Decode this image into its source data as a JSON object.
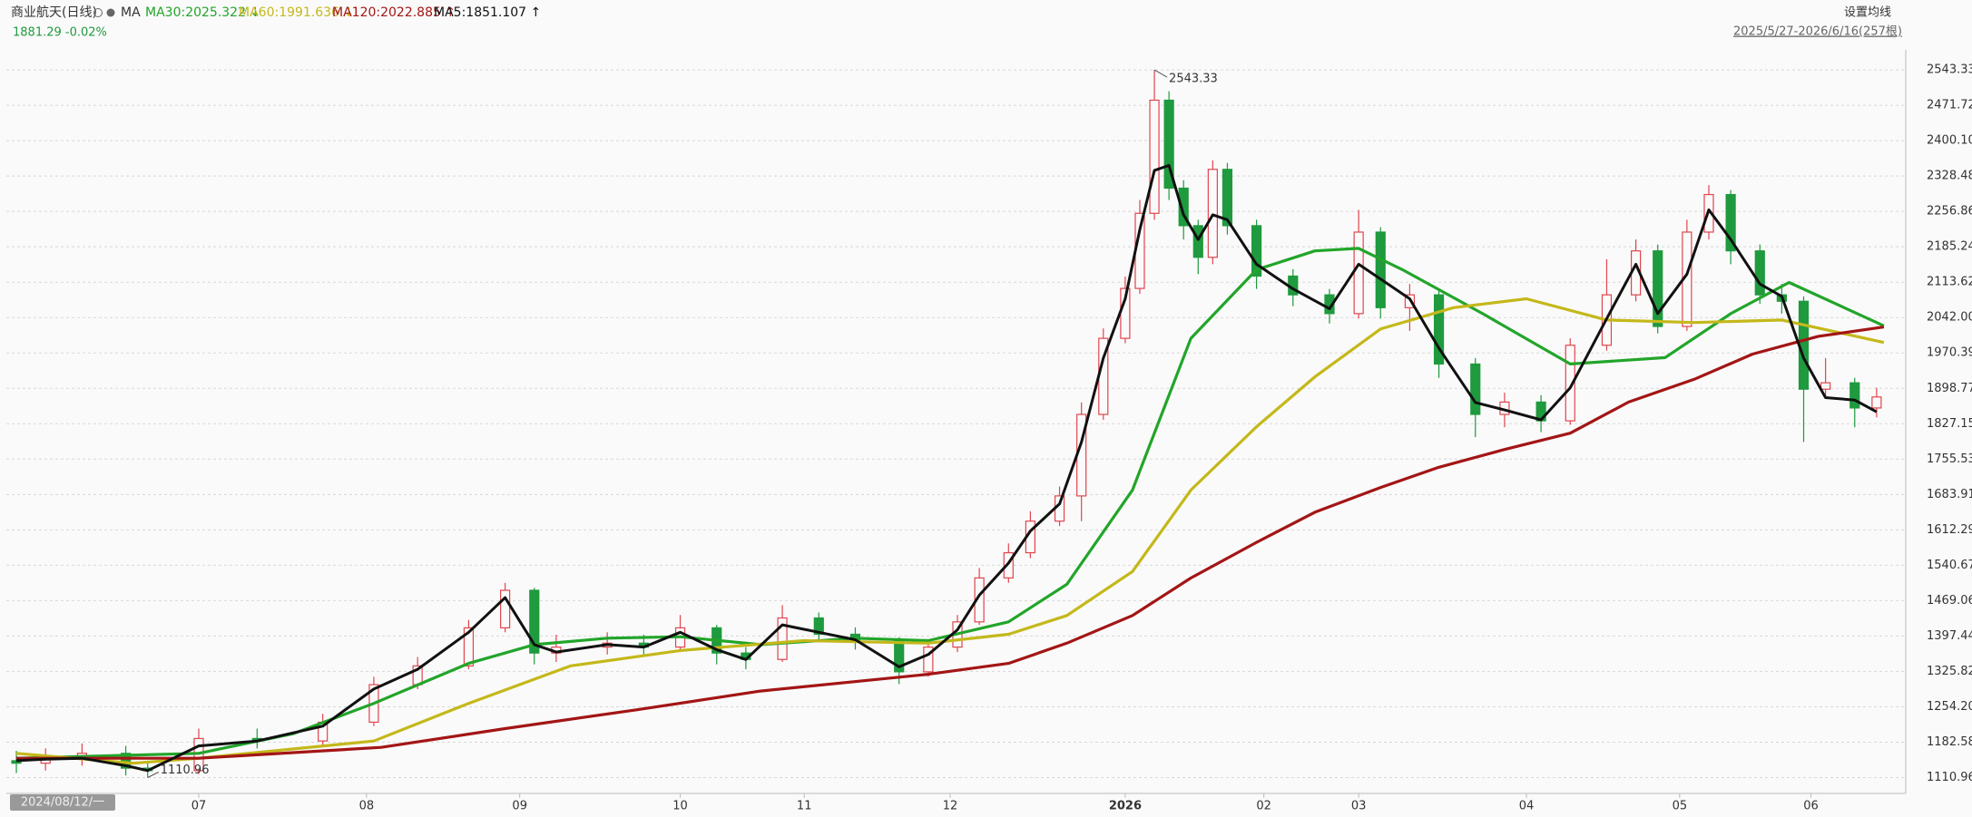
{
  "chart_data": {
    "type": "candlestick",
    "title": "商业航天(日线)",
    "indicator": "MA",
    "subtitle": "1881.29 -0.02%",
    "settings_button": "设置均线",
    "range_label": "2025/5/27-2026/6/16(257根)",
    "cursor_date_label": "2024/08/12/一",
    "annotations": [
      "2543.33",
      "1110.96"
    ],
    "up_color": "#e0454d",
    "down_color": "#1f9a3e",
    "grid": true,
    "xlim": [
      -1,
      258
    ],
    "ylim": [
      1088,
      2571
    ],
    "xticks": [
      {
        "value": 25,
        "label": "07"
      },
      {
        "value": 48,
        "label": "08"
      },
      {
        "value": 69,
        "label": "09"
      },
      {
        "value": 91,
        "label": "10"
      },
      {
        "value": 108,
        "label": "11"
      },
      {
        "value": 128,
        "label": "12"
      },
      {
        "value": 152,
        "label": "2026"
      },
      {
        "value": 171,
        "label": "02"
      },
      {
        "value": 184,
        "label": "03"
      },
      {
        "value": 207,
        "label": "04"
      },
      {
        "value": 228,
        "label": "05"
      },
      {
        "value": 246,
        "label": "06"
      }
    ],
    "yticks": [
      1110.96,
      1182.58,
      {
        "value": 1254.2,
        "label": "1254.20"
      },
      1325.82,
      1397.44,
      1469.06,
      1540.67,
      1612.29,
      1683.91,
      1755.53,
      1827.15,
      1898.77,
      1970.39,
      {
        "value": 2042,
        "label": "2042.00"
      },
      2113.62,
      2185.24,
      2256.86,
      2328.48,
      {
        "value": 2400.1,
        "label": "2400.10"
      },
      2471.72,
      2543.33
    ],
    "x": [
      0,
      4,
      9,
      15,
      18,
      25,
      33,
      42,
      49,
      55,
      62,
      67,
      71,
      74,
      81,
      86,
      91,
      96,
      100,
      105,
      110,
      115,
      121,
      125,
      129,
      132,
      136,
      139,
      143,
      146,
      149,
      152,
      154,
      156,
      158,
      160,
      162,
      164,
      166,
      170,
      175,
      180,
      184,
      187,
      191,
      195,
      200,
      204,
      209,
      213,
      218,
      222,
      225,
      229,
      232,
      235,
      239,
      242,
      245,
      248,
      252,
      255
    ],
    "open": [
      1145,
      1140,
      1150,
      1160,
      1130,
      1125,
      1190,
      1185,
      1223,
      1299,
      1337,
      1414,
      1490,
      1363,
      1375,
      1383,
      1375,
      1414,
      1363,
      1350,
      1434,
      1401,
      1388,
      1325,
      1375,
      1426,
      1515,
      1566,
      1630,
      1681,
      1846,
      2000,
      2101,
      2253,
      2482,
      2304,
      2228,
      2164,
      2342,
      2228,
      2126,
      2088,
      2050,
      2215,
      2062,
      2088,
      1948,
      1846,
      1871,
      1833,
      1986,
      2088,
      2177,
      2024,
      2215,
      2291,
      2177,
      2088,
      2075,
      1897,
      1910,
      1859
    ],
    "high": [
      1165,
      1170,
      1180,
      1175,
      1145,
      1210,
      1210,
      1240,
      1315,
      1355,
      1430,
      1505,
      1495,
      1400,
      1405,
      1400,
      1440,
      1420,
      1375,
      1460,
      1445,
      1415,
      1395,
      1390,
      1440,
      1535,
      1585,
      1650,
      1700,
      1870,
      2020,
      2125,
      2280,
      2543.33,
      2500,
      2320,
      2240,
      2360,
      2355,
      2240,
      2140,
      2100,
      2260,
      2225,
      2110,
      2100,
      1960,
      1890,
      1885,
      2000,
      2160,
      2200,
      2190,
      2240,
      2310,
      2300,
      2190,
      2110,
      2085,
      1960,
      1920,
      1900
    ],
    "low": [
      1120,
      1125,
      1135,
      1115,
      1110.96,
      1118,
      1170,
      1175,
      1215,
      1290,
      1330,
      1405,
      1340,
      1345,
      1360,
      1355,
      1365,
      1340,
      1330,
      1345,
      1385,
      1370,
      1300,
      1315,
      1365,
      1420,
      1505,
      1555,
      1620,
      1630,
      1835,
      1990,
      2090,
      2240,
      2280,
      2200,
      2130,
      2150,
      2210,
      2100,
      2065,
      2030,
      2040,
      2040,
      2015,
      1920,
      1800,
      1820,
      1810,
      1825,
      1975,
      2075,
      2010,
      2015,
      2200,
      2150,
      2070,
      2050,
      1790,
      1880,
      1820,
      1840
    ],
    "close": [
      1140,
      1150,
      1160,
      1130,
      1125,
      1190,
      1185,
      1223,
      1299,
      1337,
      1414,
      1490,
      1363,
      1375,
      1383,
      1375,
      1414,
      1363,
      1350,
      1434,
      1401,
      1388,
      1325,
      1375,
      1426,
      1515,
      1566,
      1630,
      1681,
      1846,
      2000,
      2101,
      2253,
      2482,
      2304,
      2228,
      2164,
      2342,
      2228,
      2126,
      2088,
      2050,
      2215,
      2062,
      2088,
      1948,
      1846,
      1871,
      1833,
      1986,
      2088,
      2177,
      2024,
      2215,
      2291,
      2177,
      2088,
      2075,
      1897,
      1910,
      1859,
      1881.29
    ],
    "series": [
      {
        "name": "MA30:2025.322 ↓",
        "color": "#22a52a",
        "x": [
          0,
          25,
          38,
          49,
          62,
          71,
          81,
          91,
          102,
          115,
          125,
          136,
          144,
          153,
          161,
          170,
          178,
          184,
          190,
          201,
          213,
          226,
          235,
          243,
          256
        ],
        "values": [
          1150,
          1160,
          1200,
          1261,
          1342,
          1380,
          1393,
          1396,
          1380,
          1393,
          1388,
          1426,
          1502,
          1693,
          2000,
          2139,
          2177,
          2182,
          2139,
          2050,
          1948,
          1961,
          2050,
          2113,
          2025.322
        ]
      },
      {
        "name": "MA60:1991.636 ↓",
        "color": "#c4b81a",
        "x": [
          0,
          16,
          25,
          49,
          62,
          76,
          91,
          108,
          125,
          136,
          144,
          153,
          161,
          170,
          178,
          187,
          197,
          207,
          218,
          230,
          242,
          256
        ],
        "values": [
          1160,
          1140,
          1150,
          1185,
          1261,
          1337,
          1368,
          1388,
          1383,
          1401,
          1439,
          1528,
          1693,
          1821,
          1922,
          2019,
          2062,
          2080,
          2037,
          2032,
          2037,
          1991.636
        ]
      },
      {
        "name": "MA120:2022.885 ↑",
        "color": "#a31515",
        "x": [
          0,
          25,
          50,
          67,
          85,
          102,
          125,
          136,
          144,
          153,
          161,
          170,
          178,
          187,
          195,
          204,
          213,
          221,
          230,
          238,
          247,
          256
        ],
        "values": [
          1150,
          1150,
          1172,
          1210,
          1248,
          1286,
          1320,
          1342,
          1383,
          1439,
          1515,
          1587,
          1648,
          1698,
          1739,
          1775,
          1808,
          1871,
          1917,
          1968,
          2004,
          2022.885
        ]
      },
      {
        "name": "MA5:1851.107 ↑",
        "color": "#111111",
        "x": [
          0,
          4,
          9,
          15,
          18,
          25,
          33,
          42,
          49,
          55,
          62,
          67,
          71,
          74,
          81,
          86,
          91,
          96,
          100,
          105,
          110,
          115,
          121,
          125,
          129,
          132,
          136,
          139,
          143,
          146,
          149,
          152,
          154,
          156,
          158,
          160,
          162,
          164,
          166,
          170,
          175,
          180,
          184,
          187,
          191,
          195,
          200,
          204,
          209,
          213,
          218,
          222,
          225,
          229,
          232,
          235,
          239,
          242,
          245,
          248,
          252,
          255
        ],
        "values": [
          1145,
          1148,
          1150,
          1135,
          1125,
          1175,
          1185,
          1215,
          1290,
          1330,
          1405,
          1475,
          1380,
          1365,
          1380,
          1375,
          1405,
          1370,
          1350,
          1420,
          1405,
          1390,
          1335,
          1360,
          1410,
          1480,
          1545,
          1610,
          1665,
          1790,
          1960,
          2080,
          2220,
          2340,
          2350,
          2250,
          2200,
          2250,
          2240,
          2150,
          2100,
          2060,
          2150,
          2120,
          2080,
          1980,
          1870,
          1855,
          1835,
          1900,
          2040,
          2150,
          2050,
          2130,
          2260,
          2200,
          2110,
          2085,
          1960,
          1880,
          1875,
          1851.107
        ]
      }
    ]
  }
}
